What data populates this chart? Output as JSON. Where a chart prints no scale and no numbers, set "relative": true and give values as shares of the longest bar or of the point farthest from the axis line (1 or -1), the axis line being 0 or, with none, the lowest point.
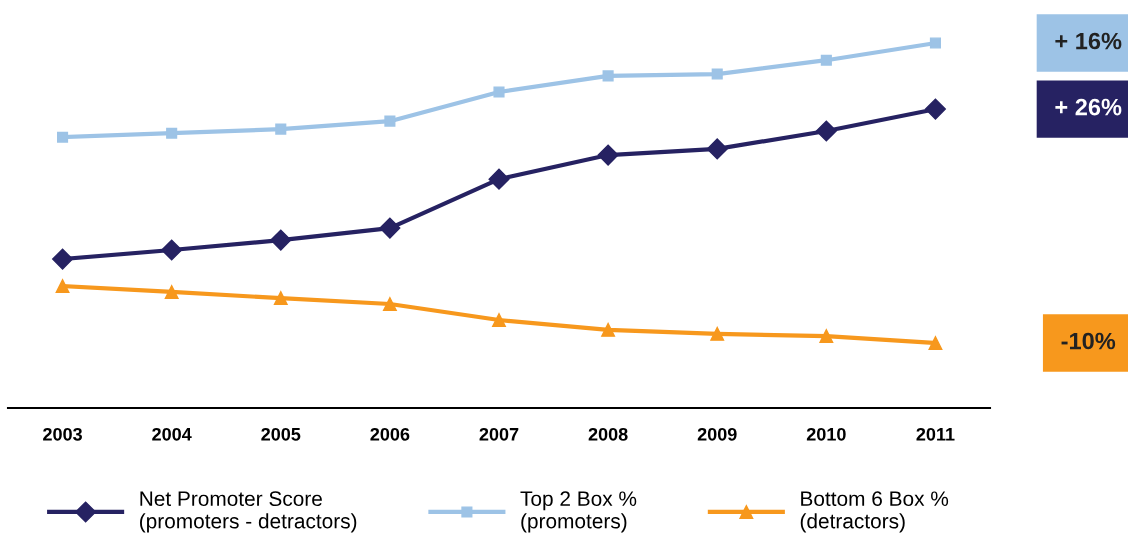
{
  "chart_data": {
    "type": "line",
    "relative": true,
    "categories": [
      "2003",
      "2004",
      "2005",
      "2006",
      "2007",
      "2008",
      "2009",
      "2010",
      "2011"
    ],
    "series": [
      {
        "name": "Net Promoter Score\n(promoters - detractors)",
        "color": "#262262",
        "marker": "diamond",
        "values": [
          0.408,
          0.433,
          0.46,
          0.493,
          0.627,
          0.693,
          0.71,
          0.759,
          0.819
        ]
      },
      {
        "name": "Top 2 Box %\n(promoters)",
        "color": "#9dc3e6",
        "marker": "square",
        "values": [
          0.742,
          0.753,
          0.764,
          0.786,
          0.866,
          0.91,
          0.915,
          0.953,
          1
        ]
      },
      {
        "name": "Bottom 6 Box %\n(detractors)",
        "color": "#f7981d",
        "marker": "triangle",
        "values": [
          0.334,
          0.318,
          0.301,
          0.285,
          0.241,
          0.214,
          0.203,
          0.197,
          0.178
        ]
      }
    ],
    "annotations": [
      "+ 26%",
      "+ 16%",
      "-10%"
    ],
    "legend": "bottom",
    "grid": false,
    "line_style": "solid",
    "tick_labels": "x"
  }
}
